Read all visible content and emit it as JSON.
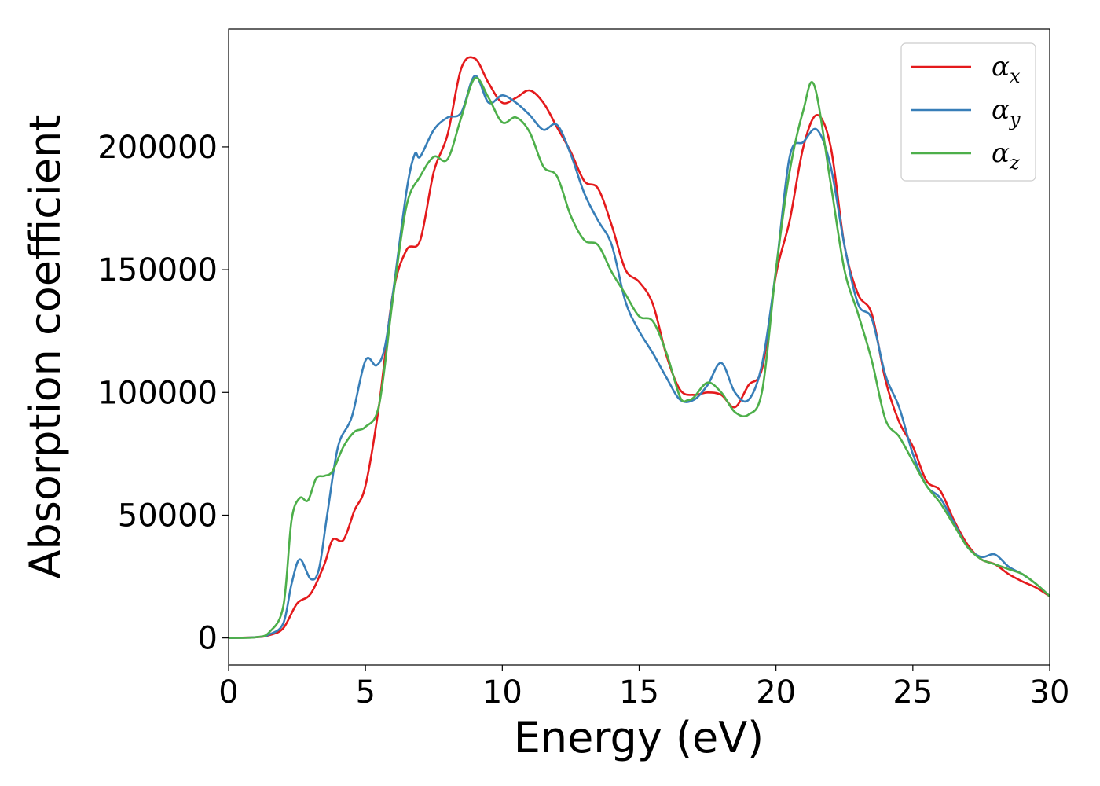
{
  "chart_data": {
    "type": "line",
    "title": "",
    "xlabel": "Energy (eV)",
    "ylabel": "Absorption coefficient",
    "xlim": [
      0,
      30
    ],
    "ylim": [
      -11000,
      248000
    ],
    "xticks": [
      0,
      5,
      10,
      15,
      20,
      25,
      30
    ],
    "xtick_labels": [
      "0",
      "5",
      "10",
      "15",
      "20",
      "25",
      "30"
    ],
    "yticks": [
      0,
      50000,
      100000,
      150000,
      200000
    ],
    "ytick_labels": [
      "0",
      "50000",
      "100000",
      "150000",
      "200000"
    ],
    "grid": false,
    "legend_position": "top-right",
    "series": [
      {
        "name": "α_x",
        "legend_symbol": "α",
        "legend_sub": "x",
        "color": "#e41a1c",
        "x": [
          0,
          1,
          1.5,
          2,
          2.5,
          3,
          3.5,
          3.8,
          4.2,
          4.6,
          5,
          5.5,
          6,
          6.5,
          7,
          7.5,
          8,
          8.5,
          9,
          9.5,
          10,
          10.5,
          11,
          11.5,
          12,
          12.5,
          13,
          13.5,
          14,
          14.5,
          15,
          15.5,
          16,
          16.5,
          17,
          17.5,
          18,
          18.5,
          19,
          19.5,
          20,
          20.5,
          21,
          21.5,
          22,
          22.5,
          23,
          23.5,
          24,
          24.5,
          25,
          25.5,
          26,
          26.5,
          27,
          27.5,
          28,
          28.5,
          29,
          29.5,
          30
        ],
        "y": [
          0,
          300,
          1200,
          4000,
          14000,
          18000,
          30000,
          40000,
          40000,
          52000,
          62000,
          95000,
          140000,
          158000,
          162000,
          190000,
          205000,
          232000,
          236000,
          226000,
          218000,
          220000,
          223000,
          218000,
          208000,
          198000,
          186000,
          183000,
          168000,
          150000,
          145000,
          136000,
          115000,
          101000,
          99000,
          100000,
          99000,
          94000,
          103000,
          110000,
          148000,
          170000,
          200000,
          213000,
          200000,
          160000,
          140000,
          132000,
          105000,
          88000,
          78000,
          64000,
          60000,
          48000,
          38000,
          32000,
          30000,
          26000,
          23000,
          20500,
          17000
        ]
      },
      {
        "name": "α_y",
        "legend_symbol": "α",
        "legend_sub": "y",
        "color": "#377eb8",
        "x": [
          0,
          1,
          1.5,
          2,
          2.3,
          2.6,
          3,
          3.3,
          3.6,
          4,
          4.5,
          5,
          5.4,
          5.7,
          6,
          6.5,
          6.8,
          7,
          7.5,
          8,
          8.5,
          9,
          9.5,
          10,
          10.5,
          11,
          11.5,
          12,
          12.5,
          13,
          13.5,
          14,
          14.5,
          15,
          15.5,
          16,
          16.5,
          17,
          17.5,
          18,
          18.5,
          19,
          19.5,
          20,
          20.5,
          21,
          21.5,
          22,
          22.5,
          23,
          23.5,
          24,
          24.5,
          25,
          25.5,
          26,
          26.5,
          27,
          27.5,
          28,
          28.5,
          29,
          29.5,
          30
        ],
        "y": [
          0,
          300,
          1500,
          6000,
          22000,
          32000,
          24000,
          28000,
          50000,
          78000,
          90000,
          113000,
          111000,
          118000,
          140000,
          182000,
          197000,
          196000,
          207000,
          212000,
          214000,
          229000,
          218000,
          221000,
          218000,
          213000,
          207000,
          209000,
          197000,
          181000,
          170000,
          160000,
          137000,
          125000,
          116000,
          106000,
          97000,
          97000,
          103000,
          112000,
          100000,
          97000,
          112000,
          150000,
          196000,
          202000,
          207000,
          192000,
          160000,
          136000,
          130000,
          107000,
          94000,
          75000,
          62000,
          57000,
          47000,
          37000,
          33000,
          34000,
          29000,
          26000,
          22000,
          17000
        ]
      },
      {
        "name": "α_z",
        "legend_symbol": "α",
        "legend_sub": "z",
        "color": "#4daf4a",
        "x": [
          0,
          1,
          1.5,
          2,
          2.3,
          2.6,
          2.9,
          3.2,
          3.5,
          3.8,
          4.2,
          4.6,
          5,
          5.5,
          6,
          6.5,
          7,
          7.5,
          8,
          8.5,
          9,
          9.5,
          10,
          10.5,
          11,
          11.5,
          12,
          12.5,
          13,
          13.5,
          14,
          14.5,
          15,
          15.5,
          16,
          16.5,
          16.8,
          17,
          17.5,
          18,
          18.5,
          19,
          19.5,
          20,
          20.5,
          21,
          21.4,
          22,
          22.5,
          23,
          23.5,
          24,
          24.5,
          25,
          25.5,
          26,
          26.5,
          27,
          27.5,
          28,
          28.5,
          29,
          29.5,
          30
        ],
        "y": [
          0,
          300,
          2500,
          13000,
          48000,
          57000,
          56000,
          65000,
          66000,
          68000,
          78000,
          84000,
          86000,
          95000,
          138000,
          176000,
          188000,
          196000,
          195000,
          212000,
          228000,
          220000,
          210000,
          212000,
          206000,
          192000,
          188000,
          172000,
          162000,
          160000,
          149000,
          140000,
          131000,
          129000,
          116000,
          98000,
          97000,
          98000,
          104000,
          100000,
          92000,
          91000,
          101000,
          150000,
          190000,
          215000,
          225000,
          185000,
          150000,
          132000,
          113000,
          89000,
          82000,
          72000,
          62000,
          55000,
          46000,
          37000,
          32000,
          30000,
          28000,
          26000,
          22000,
          17000
        ]
      }
    ]
  }
}
